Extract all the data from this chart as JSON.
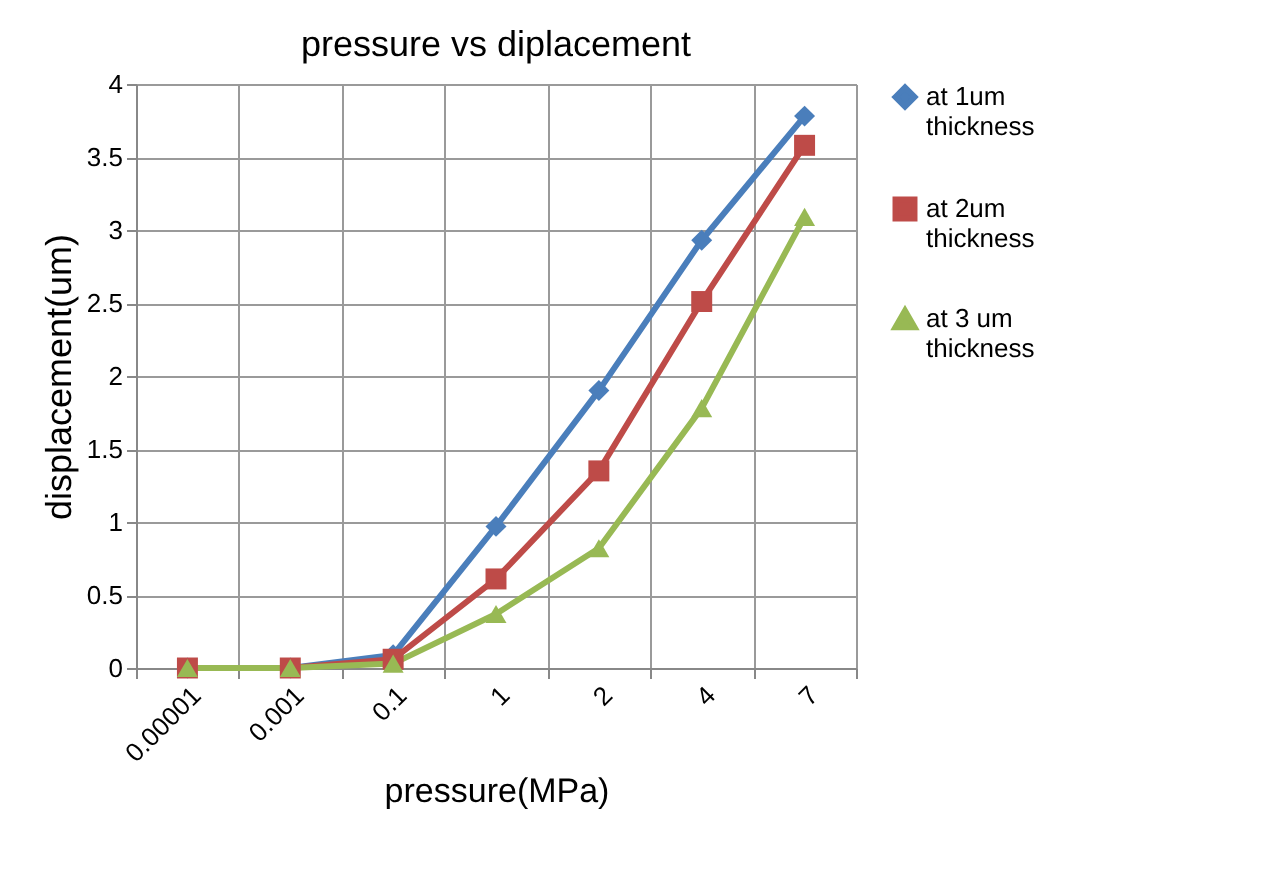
{
  "chart_data": {
    "type": "line",
    "title": "pressure vs diplacement",
    "xlabel": "pressure(MPa)",
    "ylabel": "displacement(um)",
    "categories": [
      "0.00001",
      "0.001",
      "0.1",
      "1",
      "2",
      "4",
      "7"
    ],
    "series": [
      {
        "name": "at 1um thickness",
        "color": "#4a7ebb",
        "marker": "diamond",
        "values": [
          0,
          0,
          0.09,
          0.97,
          1.9,
          2.93,
          3.78
        ]
      },
      {
        "name": "at 2um thickness",
        "color": "#be4b48",
        "marker": "square",
        "values": [
          0,
          0,
          0.06,
          0.61,
          1.35,
          2.51,
          3.58
        ]
      },
      {
        "name": "at 3 um thickness",
        "color": "#98b954",
        "marker": "triangle",
        "values": [
          0,
          0,
          0.03,
          0.37,
          0.82,
          1.78,
          3.09
        ]
      }
    ],
    "ylim": [
      0,
      4
    ],
    "yticks": [
      0,
      0.5,
      1,
      1.5,
      2,
      2.5,
      3,
      3.5,
      4
    ],
    "grid": true,
    "legend": "right",
    "line_style": "solid"
  }
}
